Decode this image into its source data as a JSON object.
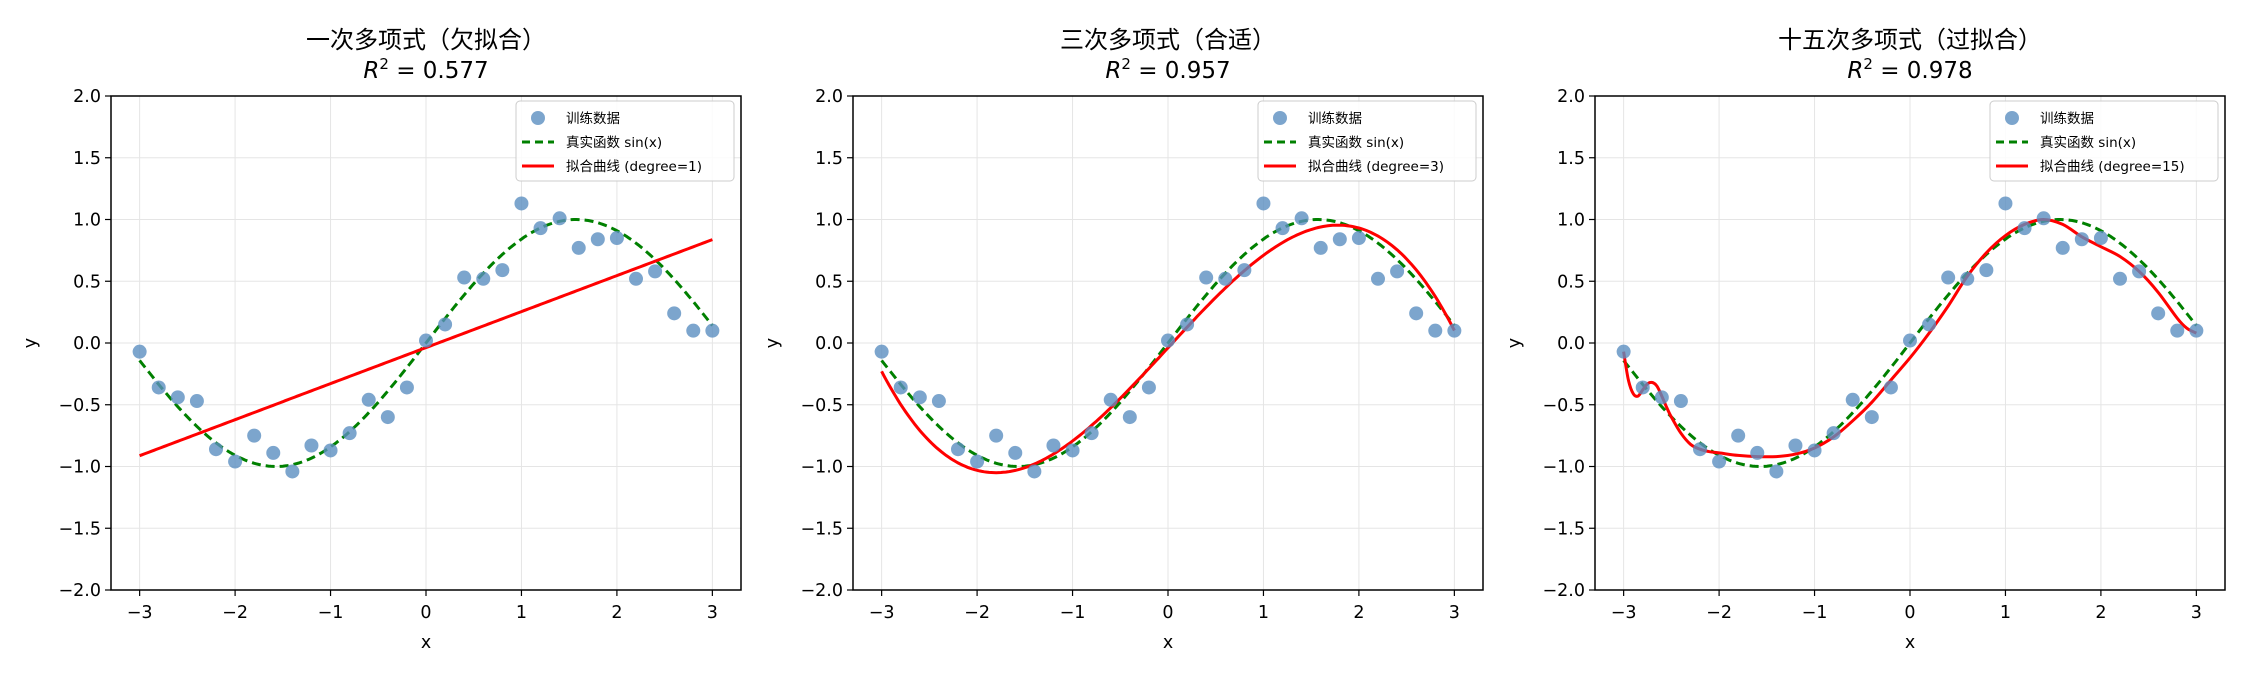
{
  "chart_data": [
    {
      "type": "scatter",
      "title": "一次多项式（欠拟合）",
      "r2_prefix": "R",
      "r2_sup": "2",
      "r2_value": " = 0.577",
      "xlabel": "x",
      "ylabel": "y",
      "xlim": [
        -3.3,
        3.3
      ],
      "ylim": [
        -2.0,
        2.0
      ],
      "xticks": [
        -3,
        -2,
        -1,
        0,
        1,
        2,
        3
      ],
      "yticks": [
        -2.0,
        -1.5,
        -1.0,
        -0.5,
        0.0,
        0.5,
        1.0,
        1.5,
        2.0
      ],
      "xtick_labels": [
        "−3",
        "−2",
        "−1",
        "0",
        "1",
        "2",
        "3"
      ],
      "ytick_labels": [
        "−2.0",
        "−1.5",
        "−1.0",
        "−0.5",
        "0.0",
        "0.5",
        "1.0",
        "1.5",
        "2.0"
      ],
      "grid": true,
      "legend_position": "top-right",
      "legend": [
        "训练数据",
        "真实函数 sin(x)",
        "拟合曲线 (degree=1)"
      ],
      "fit_degree": 1,
      "fit_coeffs": [
        -0.0375,
        0.2916
      ],
      "series": [
        {
          "name": "训练数据",
          "kind": "points",
          "color": "#5b8ec1"
        },
        {
          "name": "真实函数 sin(x)",
          "kind": "sin",
          "color": "#008000",
          "dash": true
        },
        {
          "name": "拟合曲线 (degree=1)",
          "kind": "fit",
          "color": "#ff0000"
        }
      ]
    },
    {
      "type": "scatter",
      "title": "三次多项式（合适）",
      "r2_prefix": "R",
      "r2_sup": "2",
      "r2_value": " = 0.957",
      "xlabel": "x",
      "ylabel": "y",
      "xlim": [
        -3.3,
        3.3
      ],
      "ylim": [
        -2.0,
        2.0
      ],
      "xticks": [
        -3,
        -2,
        -1,
        0,
        1,
        2,
        3
      ],
      "yticks": [
        -2.0,
        -1.5,
        -1.0,
        -0.5,
        0.0,
        0.5,
        1.0,
        1.5,
        2.0
      ],
      "xtick_labels": [
        "−3",
        "−2",
        "−1",
        "0",
        "1",
        "2",
        "3"
      ],
      "ytick_labels": [
        "−2.0",
        "−1.5",
        "−1.0",
        "−0.5",
        "0.0",
        "0.5",
        "1.0",
        "1.5",
        "2.0"
      ],
      "grid": true,
      "legend_position": "top-right",
      "legend": [
        "训练数据",
        "真实函数 sin(x)",
        "拟合曲线 (degree=3)"
      ],
      "fit_degree": 3,
      "fit_coeffs": [
        -0.0389,
        0.8389,
        -0.0028,
        -0.0871
      ],
      "series": [
        {
          "name": "训练数据",
          "kind": "points",
          "color": "#5b8ec1"
        },
        {
          "name": "真实函数 sin(x)",
          "kind": "sin",
          "color": "#008000",
          "dash": true
        },
        {
          "name": "拟合曲线 (degree=3)",
          "kind": "fit",
          "color": "#ff0000"
        }
      ]
    },
    {
      "type": "scatter",
      "title": "十五次多项式（过拟合）",
      "r2_prefix": "R",
      "r2_sup": "2",
      "r2_value": " = 0.978",
      "xlabel": "x",
      "ylabel": "y",
      "xlim": [
        -3.3,
        3.3
      ],
      "ylim": [
        -2.0,
        2.0
      ],
      "xticks": [
        -3,
        -2,
        -1,
        0,
        1,
        2,
        3
      ],
      "yticks": [
        -2.0,
        -1.5,
        -1.0,
        -0.5,
        0.0,
        0.5,
        1.0,
        1.5,
        2.0
      ],
      "xtick_labels": [
        "−3",
        "−2",
        "−1",
        "0",
        "1",
        "2",
        "3"
      ],
      "ytick_labels": [
        "−2.0",
        "−1.5",
        "−1.0",
        "−0.5",
        "0.0",
        "0.5",
        "1.0",
        "1.5",
        "2.0"
      ],
      "grid": true,
      "legend_position": "top-right",
      "legend": [
        "训练数据",
        "真实函数 sin(x)",
        "拟合曲线 (degree=15)"
      ],
      "fit_degree": 15,
      "fit_curve": {
        "x": [
          -3.0,
          -2.95,
          -2.9,
          -2.85,
          -2.8,
          -2.75,
          -2.7,
          -2.65,
          -2.6,
          -2.55,
          -2.5,
          -2.4,
          -2.3,
          -2.2,
          -2.1,
          -2.0,
          -1.8,
          -1.6,
          -1.4,
          -1.2,
          -1.0,
          -0.8,
          -0.6,
          -0.4,
          -0.2,
          0.0,
          0.2,
          0.4,
          0.6,
          0.8,
          1.0,
          1.2,
          1.4,
          1.6,
          1.8,
          2.0,
          2.2,
          2.4,
          2.6,
          2.8,
          2.9,
          3.0
        ],
        "y": [
          -0.07,
          -0.3,
          -0.41,
          -0.43,
          -0.38,
          -0.33,
          -0.32,
          -0.35,
          -0.43,
          -0.52,
          -0.6,
          -0.73,
          -0.82,
          -0.86,
          -0.88,
          -0.89,
          -0.91,
          -0.92,
          -0.92,
          -0.9,
          -0.85,
          -0.76,
          -0.63,
          -0.48,
          -0.3,
          -0.12,
          0.08,
          0.3,
          0.54,
          0.73,
          0.87,
          0.96,
          1.0,
          0.96,
          0.86,
          0.78,
          0.7,
          0.58,
          0.41,
          0.2,
          0.12,
          0.08
        ]
      },
      "series": [
        {
          "name": "训练数据",
          "kind": "points",
          "color": "#5b8ec1"
        },
        {
          "name": "真实函数 sin(x)",
          "kind": "sin",
          "color": "#008000",
          "dash": true
        },
        {
          "name": "拟合曲线 (degree=15)",
          "kind": "fit",
          "color": "#ff0000"
        }
      ]
    }
  ],
  "training_points": {
    "x": [
      -3.0,
      -2.8,
      -2.6,
      -2.4,
      -2.2,
      -2.0,
      -1.8,
      -1.6,
      -1.4,
      -1.2,
      -1.0,
      -0.8,
      -0.6,
      -0.4,
      -0.2,
      0.0,
      0.2,
      0.4,
      0.6,
      0.8,
      1.0,
      1.2,
      1.4,
      1.6,
      1.8,
      2.0,
      2.2,
      2.4,
      2.6,
      2.8,
      3.0
    ],
    "y": [
      -0.07,
      -0.36,
      -0.44,
      -0.47,
      -0.86,
      -0.96,
      -0.75,
      -0.89,
      -1.04,
      -0.83,
      -0.87,
      -0.73,
      -0.46,
      -0.6,
      -0.36,
      0.02,
      0.15,
      0.53,
      0.52,
      0.59,
      1.13,
      0.93,
      1.01,
      0.77,
      0.84,
      0.85,
      0.52,
      0.58,
      0.24,
      0.1,
      0.1
    ]
  },
  "colors": {
    "points": "#5b8ec1",
    "true_function": "#008000",
    "fit": "#ff0000",
    "grid": "#e5e5e5"
  }
}
